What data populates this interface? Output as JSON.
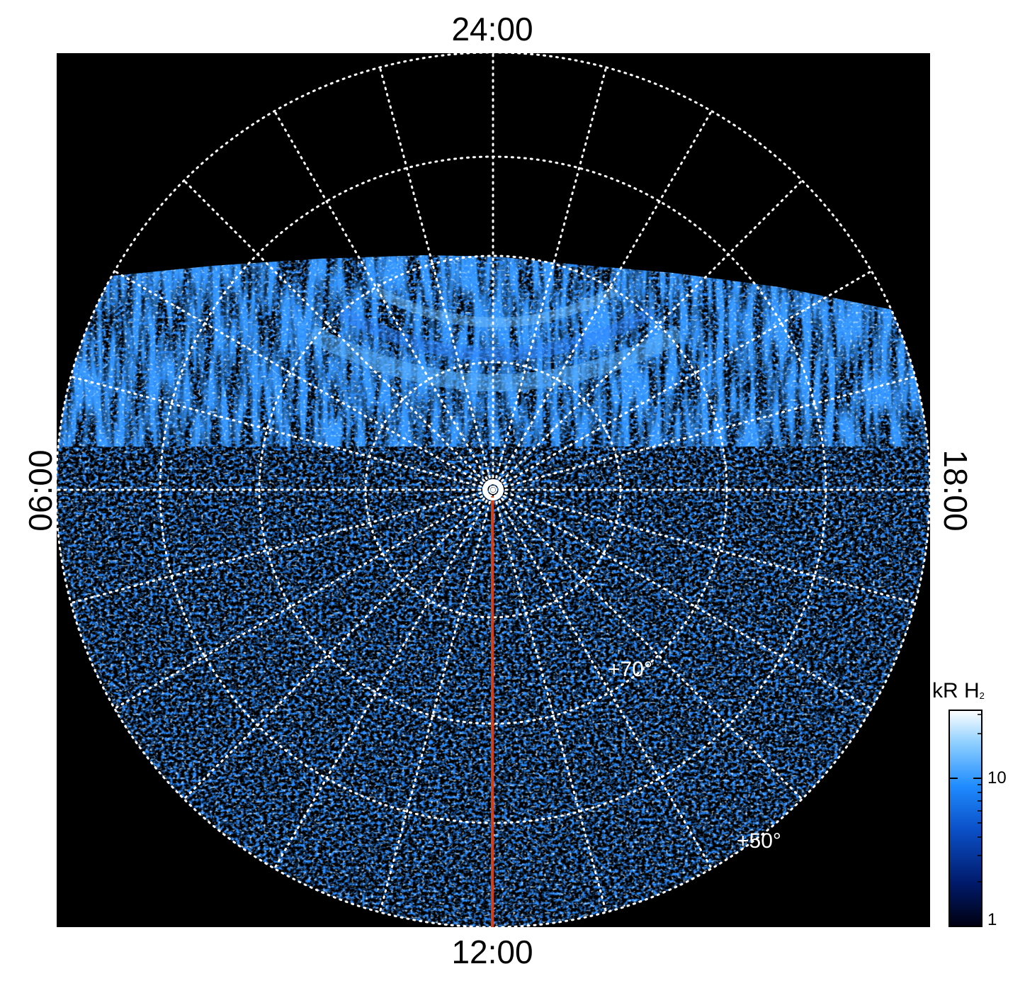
{
  "local_time_labels": {
    "top": "24:00",
    "bottom": "12:00",
    "left": "06:00",
    "right": "18:00"
  },
  "latitude_labels": [
    "+70°",
    "+50°"
  ],
  "colorbar": {
    "title": "kR H",
    "title_subscript": "2",
    "scale": "log",
    "range": [
      1,
      30
    ],
    "ticks": [
      "10",
      "1"
    ],
    "colors": [
      "#000010",
      "#001a6b",
      "#0b50c8",
      "#1f8cff",
      "#8fd0ff",
      "#ffffff"
    ]
  },
  "colors": {
    "background": "#000000",
    "grid": "#ffffff",
    "meridian_line": "#d2401a"
  }
}
